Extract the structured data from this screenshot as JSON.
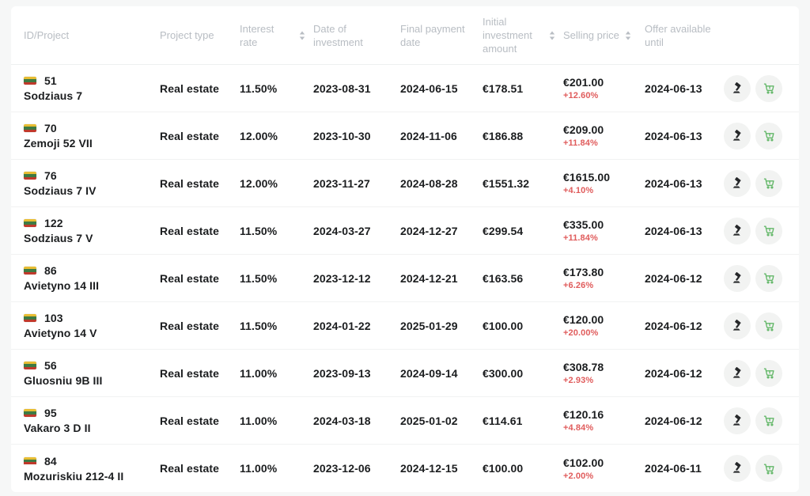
{
  "table": {
    "columns": [
      {
        "label": "ID/Project",
        "sortable": false
      },
      {
        "label": "Project type",
        "sortable": false
      },
      {
        "label": "Interest rate",
        "sortable": true
      },
      {
        "label": "Date of investment",
        "sortable": false
      },
      {
        "label": "Final payment date",
        "sortable": false
      },
      {
        "label": "Initial investment amount",
        "sortable": true
      },
      {
        "label": "Selling price",
        "sortable": true
      },
      {
        "label": "Offer available until",
        "sortable": false
      },
      {
        "label": "",
        "sortable": false
      }
    ],
    "rows": [
      {
        "id": "51",
        "project": "Sodziaus 7",
        "type": "Real estate",
        "interest_rate": "11.50%",
        "date_of_investment": "2023-08-31",
        "final_payment_date": "2024-06-15",
        "initial_investment": "€178.51",
        "selling_price": "€201.00",
        "price_change": "+12.60%",
        "offer_until": "2024-06-13"
      },
      {
        "id": "70",
        "project": "Zemoji 52 VII",
        "type": "Real estate",
        "interest_rate": "12.00%",
        "date_of_investment": "2023-10-30",
        "final_payment_date": "2024-11-06",
        "initial_investment": "€186.88",
        "selling_price": "€209.00",
        "price_change": "+11.84%",
        "offer_until": "2024-06-13"
      },
      {
        "id": "76",
        "project": "Sodziaus 7 IV",
        "type": "Real estate",
        "interest_rate": "12.00%",
        "date_of_investment": "2023-11-27",
        "final_payment_date": "2024-08-28",
        "initial_investment": "€1551.32",
        "selling_price": "€1615.00",
        "price_change": "+4.10%",
        "offer_until": "2024-06-13"
      },
      {
        "id": "122",
        "project": "Sodziaus 7 V",
        "type": "Real estate",
        "interest_rate": "11.50%",
        "date_of_investment": "2024-03-27",
        "final_payment_date": "2024-12-27",
        "initial_investment": "€299.54",
        "selling_price": "€335.00",
        "price_change": "+11.84%",
        "offer_until": "2024-06-13"
      },
      {
        "id": "86",
        "project": "Avietyno 14 III",
        "type": "Real estate",
        "interest_rate": "11.50%",
        "date_of_investment": "2023-12-12",
        "final_payment_date": "2024-12-21",
        "initial_investment": "€163.56",
        "selling_price": "€173.80",
        "price_change": "+6.26%",
        "offer_until": "2024-06-12"
      },
      {
        "id": "103",
        "project": "Avietyno 14 V",
        "type": "Real estate",
        "interest_rate": "11.50%",
        "date_of_investment": "2024-01-22",
        "final_payment_date": "2025-01-29",
        "initial_investment": "€100.00",
        "selling_price": "€120.00",
        "price_change": "+20.00%",
        "offer_until": "2024-06-12"
      },
      {
        "id": "56",
        "project": "Gluosniu 9B III",
        "type": "Real estate",
        "interest_rate": "11.00%",
        "date_of_investment": "2023-09-13",
        "final_payment_date": "2024-09-14",
        "initial_investment": "€300.00",
        "selling_price": "€308.78",
        "price_change": "+2.93%",
        "offer_until": "2024-06-12"
      },
      {
        "id": "95",
        "project": "Vakaro 3 D II",
        "type": "Real estate",
        "interest_rate": "11.00%",
        "date_of_investment": "2024-03-18",
        "final_payment_date": "2025-01-02",
        "initial_investment": "€114.61",
        "selling_price": "€120.16",
        "price_change": "+4.84%",
        "offer_until": "2024-06-12"
      },
      {
        "id": "84",
        "project": "Mozuriskiu 212-4 II",
        "type": "Real estate",
        "interest_rate": "11.00%",
        "date_of_investment": "2023-12-06",
        "final_payment_date": "2024-12-15",
        "initial_investment": "€100.00",
        "selling_price": "€102.00",
        "price_change": "+2.00%",
        "offer_until": "2024-06-11"
      }
    ]
  },
  "icons": {
    "flag": "lithuania-flag",
    "sort": "sort-arrows",
    "action_1": "gavel-auction",
    "action_2": "shopping-cart-buy"
  },
  "colors": {
    "page_background": "#f6f7f7",
    "card_background": "#ffffff",
    "header_text": "#b8bdc3",
    "row_text": "#1b1d1f",
    "price_change_red": "#e05c5c",
    "cart_green": "#63b768",
    "gavel_dark": "#26282a",
    "action_circle": "#f2f3f2",
    "flag_yellow": "#e8bd33",
    "flag_green": "#3e7a43",
    "flag_red": "#c0392b"
  }
}
